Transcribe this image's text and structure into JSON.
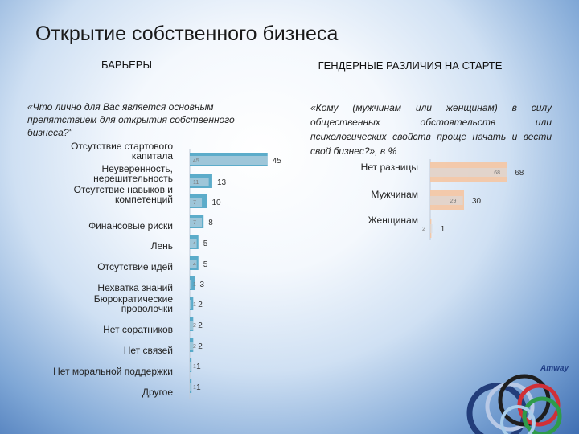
{
  "title": "Открытие собственного бизнеса",
  "left": {
    "heading": "БАРЬЕРЫ",
    "question": "«Что лично для Вас является основным препятствием для открытия собственного бизнеса?\""
  },
  "right": {
    "heading": "ГЕНДЕРНЫЕ РАЗЛИЧИЯ НА СТАРТЕ",
    "question": "«Кому (мужчинам или женщинам) в силу общественных обстоятельств или психологических свойств проще начать и вести свой бизнес?», в %"
  },
  "logo": {
    "text": "Amway"
  },
  "chart_data": [
    {
      "type": "bar",
      "orientation": "horizontal",
      "categories": [
        "Отсутствие стартового капитала",
        "Неуверенность, нерешительность",
        "Отсутствие навыков и компетенций",
        "Финансовые риски",
        "Лень",
        "Отсутствие идей",
        "Нехватка знаний",
        "Бюрократические проволочки",
        "Нет соратников",
        "Нет связей",
        "Нет моральной поддержки",
        "Другое"
      ],
      "series": [
        {
          "values": [
            45,
            13,
            10,
            8,
            5,
            5,
            3,
            2,
            2,
            2,
            1,
            1
          ]
        },
        {
          "values": [
            45,
            11,
            7,
            7,
            4,
            4,
            1,
            1,
            2,
            2,
            1,
            1
          ]
        }
      ],
      "colors": [
        "#4aa3c4",
        "#d6dde6"
      ]
    },
    {
      "type": "bar",
      "orientation": "horizontal",
      "categories": [
        "Нет разницы",
        "Мужчинам",
        "Женщинам"
      ],
      "series": [
        {
          "values": [
            68,
            30,
            1
          ]
        },
        {
          "values": [
            68,
            29,
            2
          ]
        }
      ],
      "colors": [
        "#f3c7a6",
        "#d6dde6"
      ]
    }
  ]
}
